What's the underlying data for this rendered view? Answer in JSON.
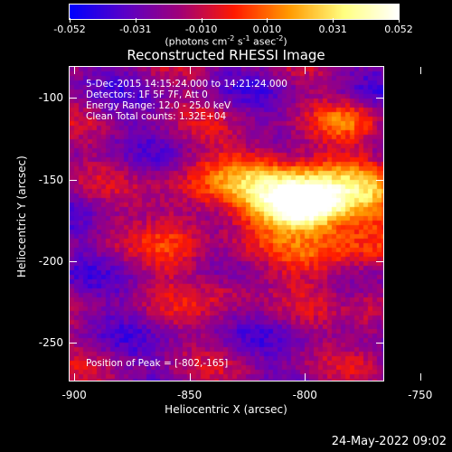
{
  "colorbar": {
    "tick_labels": [
      "-0.052",
      "-0.031",
      "-0.010",
      "0.010",
      "0.031",
      "0.052"
    ],
    "units_text": "(photons cm",
    "units_exp1": "-2",
    "units_mid1": " s",
    "units_exp2": "-1",
    "units_mid2": " asec",
    "units_exp3": "-2",
    "units_end": ")"
  },
  "title": "Reconstructed RHESSI Image",
  "info": {
    "time_range": "5-Dec-2015 14:15:24.000 to 14:21:24.000",
    "detectors": "Detectors: 1F 5F 7F, Att 0",
    "energy": "Energy Range: 12.0 - 25.0 keV",
    "method": "Clean     Total counts: 1.32E+04",
    "peak": "Position of Peak = [-802,-165]"
  },
  "axes": {
    "xlabel": "Heliocentric X (arcsec)",
    "ylabel": "Heliocentric Y (arcsec)",
    "x_ticks": [
      "-900",
      "-850",
      "-800",
      "-750"
    ],
    "y_ticks": [
      "-100",
      "-150",
      "-200",
      "-250"
    ],
    "x_tick_values": [
      -900,
      -850,
      -800,
      -750
    ],
    "y_tick_values": [
      -100,
      -150,
      -200,
      -250
    ],
    "xlim": [
      -902,
      -766
    ],
    "ylim": [
      -273,
      -81
    ]
  },
  "image": {
    "type": "heatmap",
    "colormap": [
      "#0000ff",
      "#5a00c8",
      "#a0007a",
      "#ff1a00",
      "#ff9a00",
      "#ffff80",
      "#ffffff"
    ],
    "peak_position": [
      -802,
      -165
    ],
    "sources": [
      {
        "center": [
          -802,
          -165
        ],
        "sigma": [
          12,
          10
        ],
        "amplitude": 1.0
      },
      {
        "center": [
          -815,
          -150
        ],
        "sigma": [
          22,
          16
        ],
        "amplitude": 0.55
      },
      {
        "center": [
          -780,
          -160
        ],
        "sigma": [
          18,
          14
        ],
        "amplitude": 0.45
      },
      {
        "center": [
          -790,
          -195
        ],
        "sigma": [
          16,
          12
        ],
        "amplitude": 0.4
      },
      {
        "center": [
          -835,
          -215
        ],
        "sigma": [
          10,
          10
        ],
        "amplitude": 0.25
      },
      {
        "center": [
          -855,
          -180
        ],
        "sigma": [
          10,
          22
        ],
        "amplitude": 0.3
      },
      {
        "center": [
          -772,
          -235
        ],
        "sigma": [
          6,
          16
        ],
        "amplitude": 0.25
      },
      {
        "center": [
          -782,
          -112
        ],
        "sigma": [
          10,
          8
        ],
        "amplitude": 0.3
      }
    ]
  },
  "datestamp": "24-May-2022 09:02"
}
